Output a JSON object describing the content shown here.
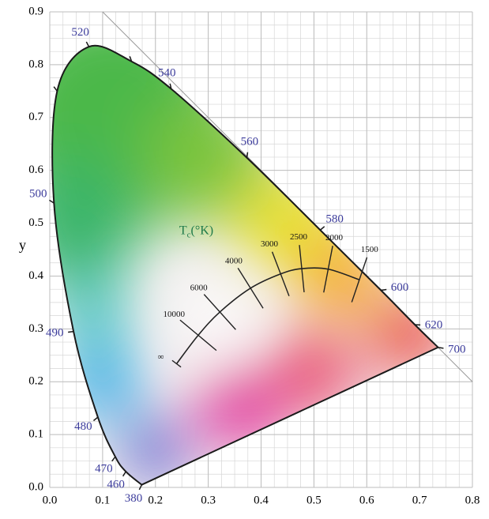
{
  "chart_data": {
    "type": "chromaticity",
    "ylabel": "y",
    "xlim": [
      0,
      0.8
    ],
    "ylim": [
      0,
      0.9
    ],
    "xticks": [
      {
        "value": 0,
        "label": "0.0"
      },
      0.1,
      0.2,
      0.3,
      0.4,
      0.5,
      0.6,
      0.7,
      0.8
    ],
    "yticks": [
      {
        "value": 0,
        "label": "0.0"
      },
      0.1,
      0.2,
      0.3,
      0.4,
      0.5,
      0.6,
      0.7,
      0.8,
      0.9
    ],
    "grid": true,
    "spectral_locus": {
      "labels": [
        "380",
        "460",
        "470",
        "480",
        "490",
        "500",
        null,
        "520",
        null,
        "540",
        "560",
        "580",
        "600",
        "620",
        "700"
      ],
      "x": [
        0.174,
        0.144,
        0.124,
        0.091,
        0.045,
        0.008,
        0.014,
        0.074,
        0.155,
        0.23,
        0.373,
        0.512,
        0.627,
        0.691,
        0.735
      ],
      "y": [
        0.005,
        0.03,
        0.058,
        0.133,
        0.295,
        0.538,
        0.75,
        0.834,
        0.806,
        0.754,
        0.624,
        0.487,
        0.373,
        0.308,
        0.265
      ],
      "color": "#1a1a1a",
      "label_color": "#3b3b9b"
    },
    "planckian_locus": {
      "labels": [
        "∞",
        "10000",
        "6000",
        "4000",
        "3000",
        "2500",
        "2000",
        "1500"
      ],
      "x": [
        0.24,
        0.281,
        0.322,
        0.38,
        0.437,
        0.477,
        0.527,
        0.586
      ],
      "y": [
        0.234,
        0.288,
        0.332,
        0.377,
        0.404,
        0.414,
        0.413,
        0.393
      ],
      "color": "#222222"
    },
    "temperature_label": {
      "symbol": "T",
      "subscript": "c",
      "unit": "(°K)",
      "color": "#1f7a4a"
    }
  }
}
